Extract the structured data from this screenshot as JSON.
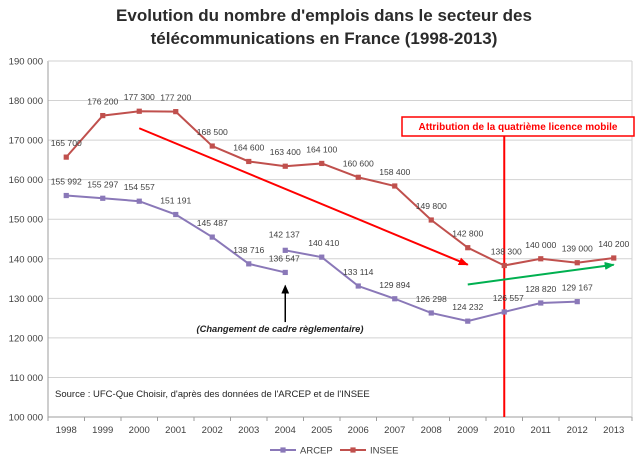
{
  "chart_data": {
    "type": "line",
    "title_lines": [
      "Evolution du nombre d'emplois dans le secteur des",
      "télécommunications en France (1998-2013)"
    ],
    "xlabel": "",
    "ylabel": "",
    "ylim": [
      100000,
      190000
    ],
    "grid": true,
    "legend_position": "bottom",
    "x": [
      "1998",
      "1999",
      "2000",
      "2001",
      "2002",
      "2003",
      "2004",
      "2005",
      "2006",
      "2007",
      "2008",
      "2009",
      "2010",
      "2011",
      "2012",
      "2013"
    ],
    "y_ticks": [
      "100 000",
      "110 000",
      "120 000",
      "130 000",
      "140 000",
      "150 000",
      "160 000",
      "170 000",
      "180 000",
      "190 000"
    ],
    "series": [
      {
        "name": "ARCEP",
        "color": "#8a78b8",
        "segments": [
          {
            "x": [
              "1998",
              "1999",
              "2000",
              "2001",
              "2002",
              "2003",
              "2004"
            ],
            "values": [
              155992,
              155297,
              154557,
              151191,
              145487,
              138716,
              136547
            ],
            "labels": [
              "155 992",
              "155 297",
              "154 557",
              "151 191",
              "145 487",
              "138 716",
              "136 547"
            ]
          },
          {
            "x": [
              "2004",
              "2005",
              "2006",
              "2007",
              "2008",
              "2009",
              "2010",
              "2011",
              "2012"
            ],
            "values": [
              142137,
              140410,
              133114,
              129894,
              126298,
              124232,
              126557,
              128820,
              129167
            ],
            "labels": [
              "142 137",
              "140 410",
              "133 114",
              "129 894",
              "126 298",
              "124 232",
              "126 557",
              "128 820",
              "129 167"
            ]
          }
        ]
      },
      {
        "name": "INSEE",
        "color": "#c0504d",
        "segments": [
          {
            "x": [
              "1998",
              "1999",
              "2000",
              "2001",
              "2002",
              "2003",
              "2004",
              "2005",
              "2006",
              "2007",
              "2008",
              "2009",
              "2010",
              "2011",
              "2012",
              "2013"
            ],
            "values": [
              165700,
              176200,
              177300,
              177200,
              168500,
              164600,
              163400,
              164100,
              160600,
              158400,
              149800,
              142800,
              138300,
              140000,
              139000,
              140200
            ],
            "labels": [
              "165 700",
              "176 200",
              "177 300",
              "177 200",
              "168 500",
              "164 600",
              "163 400",
              "164 100",
              "160 600",
              "158 400",
              "149 800",
              "142 800",
              "138 300",
              "140 000",
              "139 000",
              "140 200"
            ]
          }
        ]
      }
    ],
    "annotations": {
      "license_text": "Attribution de la quatrième licence mobile",
      "license_year": "2010",
      "framework_text": "(Changement de cadre règlementaire)",
      "source_text": "Source : UFC-Que Choisir, d'après des données de l'ARCEP et de l'INSEE",
      "red_trend": {
        "from": [
          "2000",
          173000
        ],
        "to": [
          "2009",
          138500
        ],
        "color": "#ff0000"
      },
      "green_trend": {
        "from": [
          "2009",
          133500
        ],
        "to": [
          "2013",
          138500
        ],
        "color": "#00b050"
      },
      "black_arrow": {
        "x": "2004",
        "from": 124000,
        "to": 133200
      }
    }
  }
}
